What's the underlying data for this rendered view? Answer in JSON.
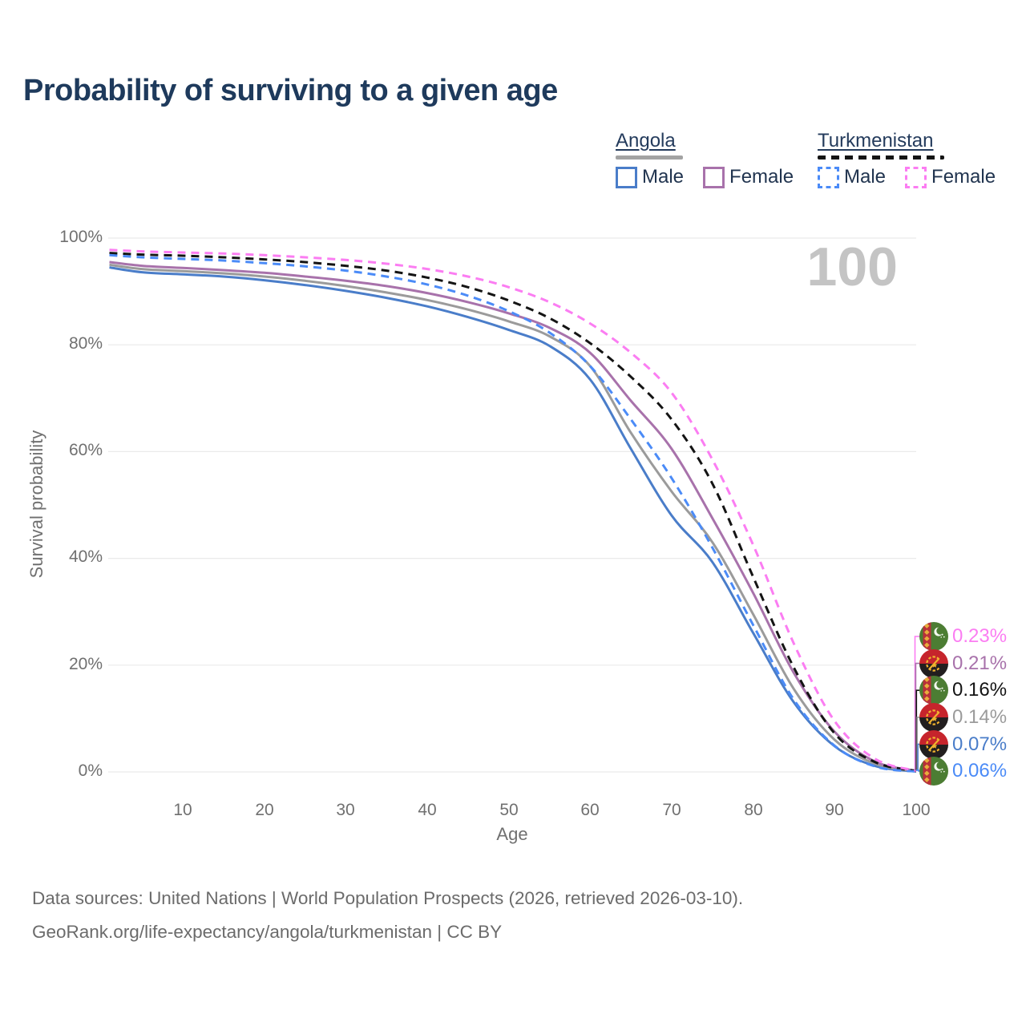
{
  "title": "Probability of surviving to a given age",
  "legend": {
    "groups": [
      {
        "label": "Angola",
        "line_style": "solid",
        "color": "#a3a3a3",
        "items": [
          {
            "label": "Male",
            "color": "#4a7dc9"
          },
          {
            "label": "Female",
            "color": "#a872ab"
          }
        ]
      },
      {
        "label": "Turkmenistan",
        "line_style": "dashed",
        "color": "#141414",
        "items": [
          {
            "label": "Male",
            "color": "#4b8bf7"
          },
          {
            "label": "Female",
            "color": "#fb7df2"
          }
        ]
      }
    ]
  },
  "chart_data": {
    "type": "line",
    "title": "Probability of surviving to a given age",
    "xlabel": "Age",
    "ylabel": "Survival probability",
    "xlim": [
      1,
      100
    ],
    "ylim": [
      0,
      100
    ],
    "grid": "horizontal",
    "legend_position": "top-right",
    "annotation": "100",
    "x_ticks": [
      10,
      20,
      30,
      40,
      50,
      60,
      70,
      80,
      90,
      100
    ],
    "y_tick_labels": [
      "0%",
      "20%",
      "40%",
      "60%",
      "80%",
      "100%"
    ],
    "ages": [
      1,
      5,
      10,
      15,
      20,
      25,
      30,
      35,
      40,
      45,
      50,
      55,
      60,
      65,
      70,
      75,
      80,
      85,
      90,
      95,
      100
    ],
    "series": [
      {
        "name": "Angola Male",
        "country": "Angola",
        "sex": "male",
        "style": "solid",
        "color": "#4a7dc9",
        "values": [
          94.5,
          93.6,
          93.2,
          92.8,
          92.1,
          91.2,
          90.1,
          88.8,
          87.2,
          85.2,
          82.8,
          79.8,
          73.5,
          60.5,
          48.0,
          39.3,
          26.0,
          13.0,
          4.8,
          1.1,
          0.07
        ]
      },
      {
        "name": "Angola (both sexes)",
        "country": "Angola",
        "sex": "both",
        "style": "solid",
        "color": "#9b9b9b",
        "values": [
          95.0,
          94.2,
          93.8,
          93.4,
          92.8,
          92.0,
          91.0,
          89.8,
          88.4,
          86.6,
          84.4,
          81.6,
          76.0,
          63.5,
          52.5,
          43.0,
          29.5,
          15.5,
          6.0,
          1.5,
          0.14
        ]
      },
      {
        "name": "Angola Female",
        "country": "Angola",
        "sex": "female",
        "style": "solid",
        "color": "#a872ab",
        "values": [
          95.5,
          94.8,
          94.4,
          94.0,
          93.5,
          92.8,
          92.0,
          91.0,
          89.7,
          88.0,
          85.9,
          83.2,
          78.5,
          69.5,
          60.5,
          47.5,
          33.5,
          18.5,
          7.5,
          1.9,
          0.21
        ]
      },
      {
        "name": "Turkmenistan (both sexes)",
        "country": "Turkmenistan",
        "sex": "both",
        "style": "dashed",
        "color": "#141414",
        "values": [
          97.2,
          96.9,
          96.7,
          96.4,
          96.0,
          95.5,
          94.8,
          93.9,
          92.6,
          90.8,
          88.3,
          85.0,
          80.3,
          74.0,
          66.0,
          54.0,
          36.5,
          19.5,
          7.2,
          1.8,
          0.16
        ]
      },
      {
        "name": "Turkmenistan Male",
        "country": "Turkmenistan",
        "sex": "male",
        "style": "dashed",
        "color": "#4b8bf7",
        "values": [
          96.8,
          96.4,
          96.1,
          95.8,
          95.3,
          94.7,
          93.9,
          92.8,
          91.3,
          89.2,
          86.3,
          82.3,
          76.0,
          66.0,
          55.0,
          42.0,
          27.5,
          13.5,
          4.9,
          1.0,
          0.06
        ]
      },
      {
        "name": "Turkmenistan Female",
        "country": "Turkmenistan",
        "sex": "female",
        "style": "dashed",
        "color": "#fb7df2",
        "values": [
          97.8,
          97.5,
          97.3,
          97.1,
          96.8,
          96.4,
          95.9,
          95.2,
          94.2,
          92.8,
          90.8,
          88.0,
          84.0,
          78.5,
          71.0,
          58.5,
          42.5,
          24.0,
          9.5,
          2.4,
          0.23
        ]
      }
    ]
  },
  "end_labels": [
    {
      "value": "0.23%",
      "country": "Turkmenistan",
      "flag": "turkmenistan",
      "color": "#fb7df2"
    },
    {
      "value": "0.21%",
      "country": "Angola",
      "flag": "angola",
      "color": "#a872ab"
    },
    {
      "value": "0.16%",
      "country": "Turkmenistan",
      "flag": "turkmenistan",
      "color": "#141414"
    },
    {
      "value": "0.14%",
      "country": "Angola",
      "flag": "angola",
      "color": "#9b9b9b"
    },
    {
      "value": "0.07%",
      "country": "Angola",
      "flag": "angola",
      "color": "#4a7dc9"
    },
    {
      "value": "0.06%",
      "country": "Turkmenistan",
      "flag": "turkmenistan",
      "color": "#4b8bf7"
    }
  ],
  "footer": {
    "line1": "Data sources: United Nations | World Population Prospects (2026, retrieved 2026-03-10).",
    "line2": "GeoRank.org/life-expectancy/angola/turkmenistan | CC BY"
  }
}
